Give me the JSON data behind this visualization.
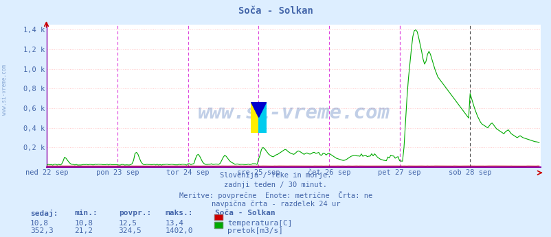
{
  "title": "Soča - Solkan",
  "background_color": "#ddeeff",
  "plot_bg_color": "#ffffff",
  "grid_color_h": "#ffcccc",
  "text_color": "#4466aa",
  "ylabel_ticks": [
    "0,2 k",
    "0,4 k",
    "0,6 k",
    "0,8 k",
    "1,0 k",
    "1,2 k",
    "1,4 k"
  ],
  "ytick_values": [
    200,
    400,
    600,
    800,
    1000,
    1200,
    1400
  ],
  "ylim": [
    0,
    1450
  ],
  "xlabel_days": [
    "ned 22 sep",
    "pon 23 sep",
    "tor 24 sep",
    "sre 25 sep",
    "čet 26 sep",
    "pet 27 sep",
    "sob 28 sep"
  ],
  "day_positions": [
    0,
    48,
    96,
    144,
    192,
    240,
    288
  ],
  "total_points": 336,
  "subtitle_lines": [
    "Slovenija / reke in morje.",
    "zadnji teden / 30 minut.",
    "Meritve: povprečne  Enote: metrične  Črta: ne",
    "navpična črta - razdelek 24 ur"
  ],
  "watermark": "www.si-vreme.com",
  "side_text": "www.si-vreme.com",
  "legend_title": "Soča - Solkan",
  "legend_items": [
    {
      "label": "temperatura[C]",
      "color": "#cc0000"
    },
    {
      "label": "pretok[m3/s]",
      "color": "#00aa00"
    }
  ],
  "table_headers": [
    "sedaj:",
    "min.:",
    "povpr.:",
    "maks.:"
  ],
  "table_data": [
    [
      "10,8",
      "10,8",
      "12,5",
      "13,4"
    ],
    [
      "352,3",
      "21,2",
      "324,5",
      "1402,0"
    ]
  ],
  "pink_vlines": [
    48,
    96,
    144,
    192,
    240,
    288
  ],
  "black_dashed_vline": 288,
  "temp_color": "#cc0000",
  "flow_color": "#00aa00",
  "xaxis_color": "#8800aa",
  "arrow_color": "#cc0000"
}
